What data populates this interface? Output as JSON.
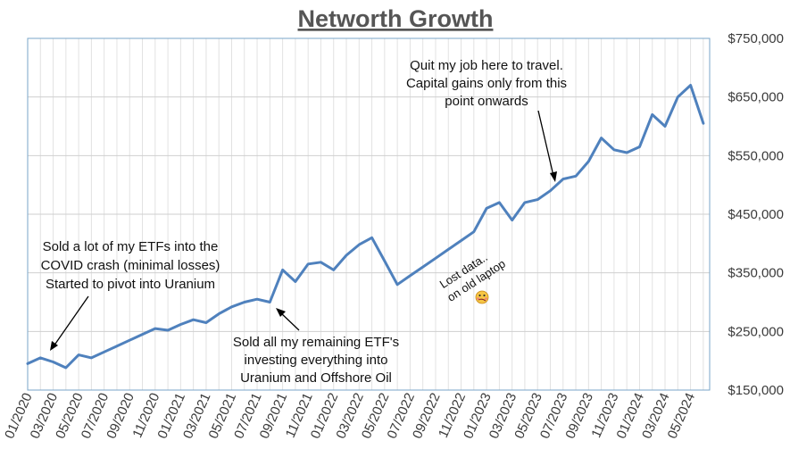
{
  "chart_data": {
    "type": "line",
    "title": "Networth Growth",
    "xlabel": "",
    "ylabel": "",
    "ylim": [
      150000,
      750000
    ],
    "y_ticks": [
      "$150,000",
      "$250,000",
      "$350,000",
      "$450,000",
      "$550,000",
      "$650,000",
      "$750,000"
    ],
    "y_tick_values": [
      150000,
      250000,
      350000,
      450000,
      550000,
      650000,
      750000
    ],
    "y_axis_position": "right",
    "x_ticks": [
      "01/2020",
      "03/2020",
      "05/2020",
      "07/2020",
      "09/2020",
      "11/2020",
      "01/2021",
      "03/2021",
      "05/2021",
      "07/2021",
      "09/2021",
      "11/2021",
      "01/2022",
      "03/2022",
      "05/2022",
      "07/2022",
      "09/2022",
      "11/2022",
      "01/2023",
      "03/2023",
      "05/2023",
      "07/2023",
      "09/2023",
      "11/2023",
      "01/2024",
      "03/2024",
      "05/2024"
    ],
    "grid": "vertical and horizontal",
    "line_color": "#4f81bd",
    "series": [
      {
        "x": [
          "2020-01",
          "2020-02",
          "2020-03",
          "2020-04",
          "2020-05",
          "2020-06",
          "2020-07",
          "2020-08",
          "2020-09",
          "2020-10",
          "2020-11",
          "2020-12",
          "2021-01",
          "2021-02",
          "2021-03",
          "2021-04",
          "2021-05",
          "2021-06",
          "2021-07",
          "2021-08",
          "2021-09",
          "2021-10",
          "2021-11",
          "2021-12",
          "2022-01",
          "2022-02",
          "2022-03",
          "2022-04",
          "2022-05",
          "2022-06",
          "2022-07",
          "2022-08",
          "2022-09",
          "2022-10",
          "2022-11",
          "2022-12",
          "2023-01",
          "2023-02",
          "2023-03",
          "2023-04",
          "2023-05",
          "2023-06",
          "2023-07",
          "2023-08",
          "2023-09",
          "2023-10",
          "2023-11",
          "2023-12",
          "2024-01",
          "2024-02",
          "2024-03",
          "2024-04",
          "2024-05",
          "2024-06"
        ],
        "values": [
          195000,
          205000,
          198000,
          188000,
          210000,
          205000,
          215000,
          225000,
          235000,
          245000,
          255000,
          252000,
          262000,
          270000,
          265000,
          280000,
          292000,
          300000,
          305000,
          300000,
          355000,
          335000,
          365000,
          368000,
          355000,
          380000,
          398000,
          410000,
          370000,
          330000,
          345000,
          360000,
          375000,
          390000,
          405000,
          420000,
          460000,
          470000,
          440000,
          470000,
          475000,
          490000,
          510000,
          515000,
          540000,
          580000,
          560000,
          555000,
          565000,
          620000,
          600000,
          650000,
          670000,
          605000
        ]
      }
    ],
    "annotations": {
      "covid": [
        "Sold a lot of my ETFs into the",
        "COVID crash (minimal losses)",
        "Started to pivot into Uranium"
      ],
      "sold_etfs": [
        "Sold all my remaining ETF's",
        "investing everything into",
        "Uranium and Offshore Oil"
      ],
      "quit_job": [
        "Quit my job here to travel.",
        "Capital gains only from this",
        "point onwards"
      ],
      "lost_data": [
        "Lost data..",
        "on old laptop"
      ],
      "emoji": "🥴"
    }
  }
}
